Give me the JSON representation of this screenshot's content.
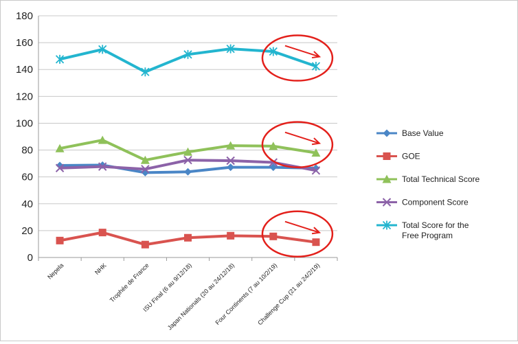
{
  "chart_data": {
    "type": "line",
    "title": "",
    "xlabel": "",
    "ylabel": "",
    "ylim": [
      0,
      180
    ],
    "yticks": [
      "0",
      "20",
      "40",
      "60",
      "80",
      "100",
      "120",
      "140",
      "160",
      "180"
    ],
    "grid": true,
    "legend_position": "right",
    "categories": [
      "Nepela",
      "NHK",
      "Trophée de France",
      "ISU Final (6 au 9/12/18)",
      "Japan Nationals (20 au 24/12/18)",
      "Four Continents (7 au 10/2/19)",
      "Challenge Cup (21 au 24/2/19)"
    ],
    "series": [
      {
        "name": "Base Value",
        "color": "#4a86c6",
        "marker": "diamond",
        "values": [
          68.5,
          68.8,
          63.2,
          63.8,
          67.2,
          67.2,
          66.5
        ]
      },
      {
        "name": "GOE",
        "color": "#d9534f",
        "marker": "square",
        "values": [
          12.6,
          18.6,
          9.6,
          14.7,
          16.2,
          15.7,
          11.4
        ]
      },
      {
        "name": "Total Technical Score",
        "color": "#8fc15a",
        "marker": "triangle",
        "values": [
          81.2,
          87.4,
          72.5,
          78.6,
          83.3,
          82.9,
          77.9
        ]
      },
      {
        "name": "Component Score",
        "color": "#8c62a8",
        "marker": "x",
        "values": [
          66.6,
          67.7,
          65.8,
          72.5,
          72.1,
          70.8,
          64.8
        ]
      },
      {
        "name": "Total Score for the Free Program",
        "color": "#23b5cf",
        "marker": "star",
        "values": [
          147.6,
          155.0,
          138.2,
          151.2,
          155.4,
          153.4,
          142.4
        ]
      }
    ],
    "annotations": [
      {
        "type": "circle-with-arrow",
        "color": "#e3201b",
        "around_series": "Total Score for the Free Program",
        "around_category": "Challenge Cup (21 au 24/2/19)"
      },
      {
        "type": "circle-with-arrow",
        "color": "#e3201b",
        "around_series": "Total Technical Score",
        "around_category": "Challenge Cup (21 au 24/2/19)"
      },
      {
        "type": "circle-with-arrow",
        "color": "#e3201b",
        "around_series": "GOE",
        "around_category": "Challenge Cup (21 au 24/2/19)"
      }
    ]
  }
}
